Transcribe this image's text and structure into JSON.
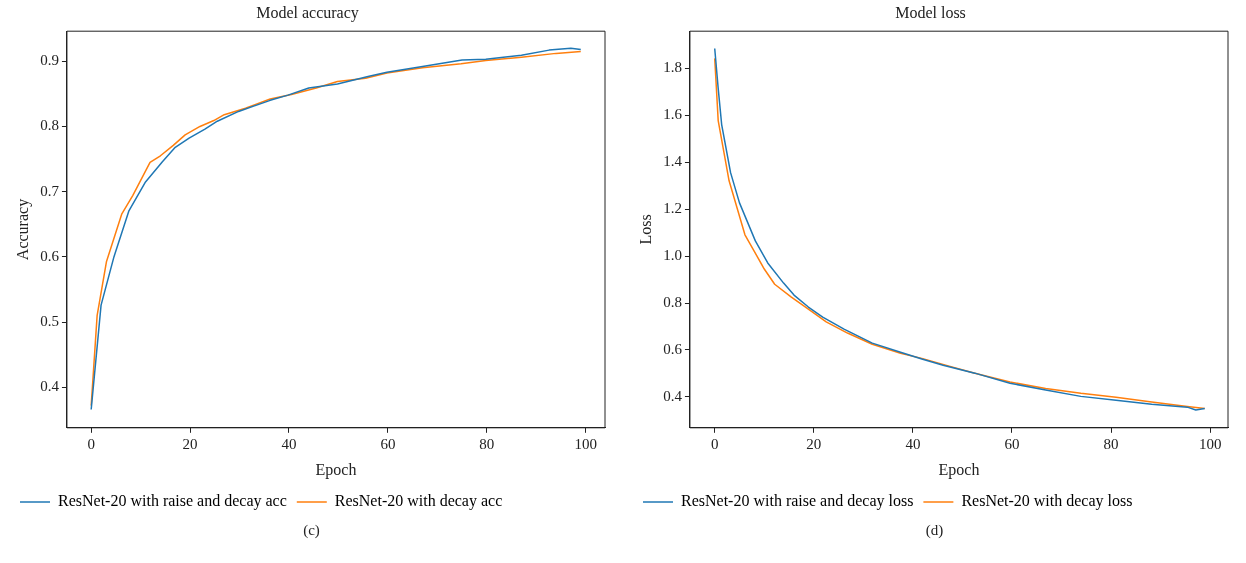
{
  "chart_data": [
    {
      "type": "line",
      "title": "Model accuracy",
      "xlabel": "Epoch",
      "ylabel": "Accuracy",
      "xlim": [
        -4.9,
        103.9
      ],
      "ylim": [
        0.338,
        0.946
      ],
      "xticks": [
        0,
        20,
        40,
        60,
        80,
        100
      ],
      "yticks": [
        0.4,
        0.5,
        0.6,
        0.7,
        0.8,
        0.9
      ],
      "legend": "bottom",
      "marker": "none",
      "line_style": "solid",
      "annotations": [
        "(c)"
      ],
      "series": [
        {
          "name": "ResNet-20 with raise and decay acc",
          "color": "#1f77b4",
          "x": [
            0,
            2,
            4.6,
            7.6,
            10.9,
            14.4,
            17,
            19.8,
            23,
            25.5,
            29.8,
            36.2,
            39.8,
            44,
            49.8,
            56.2,
            59.8,
            67,
            75,
            79.8,
            87,
            92.6,
            97,
            99
          ],
          "values": [
            0.366,
            0.526,
            0.6,
            0.67,
            0.714,
            0.746,
            0.768,
            0.782,
            0.796,
            0.808,
            0.823,
            0.84,
            0.848,
            0.859,
            0.865,
            0.877,
            0.883,
            0.892,
            0.902,
            0.903,
            0.909,
            0.917,
            0.92,
            0.918
          ]
        },
        {
          "name": "ResNet-20 with decay acc",
          "color": "#ff7f0e",
          "x": [
            0,
            1.2,
            3.1,
            6.2,
            8.4,
            11.9,
            14,
            16.6,
            19,
            22,
            24.8,
            26.9,
            31.2,
            36.2,
            40.5,
            45.5,
            49.8,
            55.5,
            59.8,
            67,
            74.8,
            79.8,
            87,
            94,
            99
          ],
          "values": [
            0.372,
            0.51,
            0.593,
            0.666,
            0.694,
            0.745,
            0.755,
            0.771,
            0.787,
            0.8,
            0.809,
            0.818,
            0.828,
            0.842,
            0.849,
            0.859,
            0.869,
            0.874,
            0.882,
            0.89,
            0.896,
            0.901,
            0.906,
            0.912,
            0.915
          ]
        }
      ]
    },
    {
      "type": "line",
      "title": "Model loss",
      "xlabel": "Epoch",
      "ylabel": "Loss",
      "xlim": [
        -5,
        103.6
      ],
      "ylim": [
        0.268,
        1.959
      ],
      "xticks": [
        0,
        20,
        40,
        60,
        80,
        100
      ],
      "yticks": [
        0.4,
        0.6,
        0.8,
        {
          "value": 1,
          "label": "1.0"
        },
        1.2,
        1.4,
        1.6,
        1.8
      ],
      "legend": "bottom",
      "marker": "none",
      "line_style": "solid",
      "annotations": [
        "(d)"
      ],
      "series": [
        {
          "name": "ResNet-20 with raise and decay loss",
          "color": "#1f77b4",
          "x": [
            0,
            0.7,
            1.4,
            3.2,
            5,
            8.2,
            10.7,
            13.9,
            16,
            18.9,
            21.8,
            26.1,
            31.8,
            37.5,
            41.8,
            46.1,
            52.5,
            59.6,
            66.8,
            73.9,
            81,
            88.2,
            95.4,
            97.1,
            98.9
          ],
          "values": [
            1.885,
            1.715,
            1.561,
            1.356,
            1.227,
            1.065,
            0.971,
            0.885,
            0.834,
            0.783,
            0.74,
            0.689,
            0.629,
            0.59,
            0.561,
            0.535,
            0.501,
            0.458,
            0.429,
            0.402,
            0.385,
            0.368,
            0.356,
            0.344,
            0.35
          ]
        },
        {
          "name": "ResNet-20 with decay loss",
          "color": "#ff7f0e",
          "x": [
            0,
            0.7,
            2.9,
            6.1,
            10,
            12.1,
            15.4,
            18.9,
            22.5,
            26.8,
            31.8,
            37.5,
            41.8,
            47.5,
            52.5,
            59.6,
            66.8,
            73.9,
            81,
            88.2,
            95.4,
            98.9
          ],
          "values": [
            1.843,
            1.578,
            1.321,
            1.091,
            0.945,
            0.88,
            0.826,
            0.774,
            0.72,
            0.672,
            0.624,
            0.586,
            0.564,
            0.53,
            0.501,
            0.463,
            0.436,
            0.415,
            0.398,
            0.378,
            0.359,
            0.35
          ]
        }
      ]
    }
  ]
}
